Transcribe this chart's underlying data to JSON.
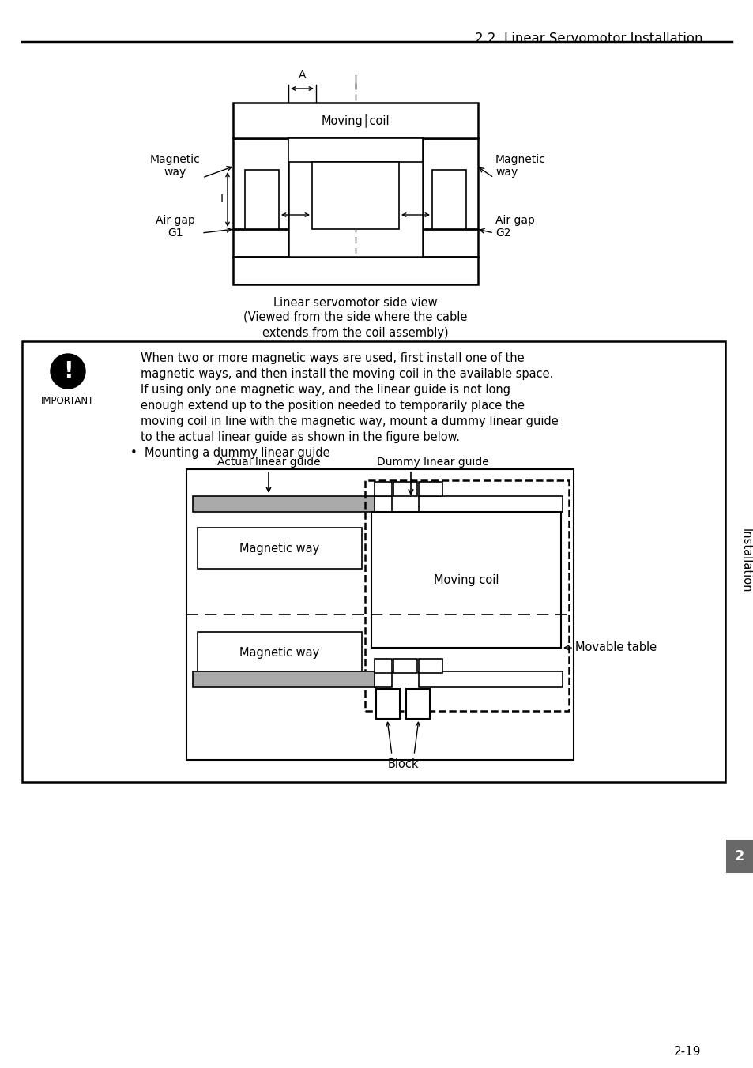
{
  "page_title": "2.2  Linear Servomotor Installation",
  "page_number": "2-19",
  "sidebar_label": "Installation",
  "sidebar_number": "2",
  "sidebar_color": "#686868",
  "bg": "#ffffff",
  "top_diag_caption1": "Linear servomotor side view",
  "top_diag_caption2": "(Viewed from the side where the cable\nextends from the coil assembly)",
  "label_moving_coil": "Moving│coil",
  "label_mag_way_l": "Magnetic\nway",
  "label_mag_way_r": "Magnetic\nway",
  "label_airgap_l": "Air gap\nG1",
  "label_airgap_r": "Air gap\nG2",
  "label_A": "A",
  "label_I": "I",
  "imp_lines": [
    "When two or more magnetic ways are used, first install one of the",
    "magnetic ways, and then install the moving coil in the available space.",
    "If using only one magnetic way, and the linear guide is not long",
    "enough extend up to the position needed to temporarily place the",
    "moving coil in line with the magnetic way, mount a dummy linear guide",
    "to the actual linear guide as shown in the figure below."
  ],
  "imp_bullet": "•  Mounting a dummy linear guide",
  "label_actual": "Actual linear guide",
  "label_dummy": "Dummy linear guide",
  "label_mw1": "Magnetic way",
  "label_mw2": "Magnetic way",
  "label_mc": "Moving coil",
  "label_movable": "Movable table",
  "label_block": "Block"
}
